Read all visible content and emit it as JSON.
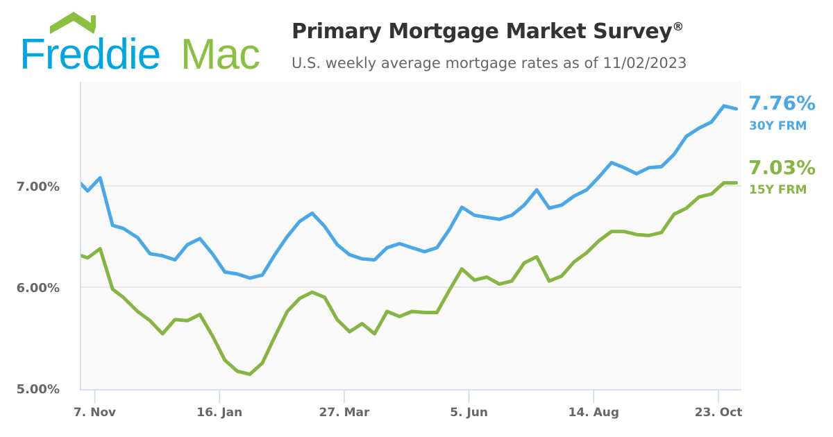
{
  "logo": {
    "text_blue": "Freddie",
    "text_green": "Mac",
    "blue": "#00A6E2",
    "green": "#8BBF3F"
  },
  "header": {
    "title": "Primary Mortgage Market Survey",
    "title_mark": "®",
    "subtitle": "U.S. weekly average mortgage rates as of 11/02/2023"
  },
  "chart_data": {
    "type": "line",
    "title": "Primary Mortgage Market Survey®",
    "subtitle": "U.S. weekly average mortgage rates as of 11/02/2023",
    "xlim": [
      "2022-10-30",
      "2023-11-06"
    ],
    "ylim": [
      5.0,
      8.0
    ],
    "grid": true,
    "y_ticks": [
      {
        "value": 5,
        "label": "5.00%"
      },
      {
        "value": 6,
        "label": "6.00%"
      },
      {
        "value": 7,
        "label": "7.00%"
      }
    ],
    "x_ticks": [
      {
        "date": "2022-11-07",
        "label": "7. Nov"
      },
      {
        "date": "2023-01-16",
        "label": "16. Jan"
      },
      {
        "date": "2023-03-27",
        "label": "27. Mar"
      },
      {
        "date": "2023-06-05",
        "label": "5. Jun"
      },
      {
        "date": "2023-08-14",
        "label": "14. Aug"
      },
      {
        "date": "2023-10-23",
        "label": "23. Oct"
      }
    ],
    "x": [
      "2022-10-27",
      "2022-11-03",
      "2022-11-10",
      "2022-11-17",
      "2022-11-23",
      "2022-12-01",
      "2022-12-08",
      "2022-12-15",
      "2022-12-22",
      "2022-12-29",
      "2023-01-05",
      "2023-01-12",
      "2023-01-19",
      "2023-01-26",
      "2023-02-02",
      "2023-02-09",
      "2023-02-16",
      "2023-02-23",
      "2023-03-02",
      "2023-03-09",
      "2023-03-16",
      "2023-03-23",
      "2023-03-30",
      "2023-04-06",
      "2023-04-13",
      "2023-04-20",
      "2023-04-27",
      "2023-05-04",
      "2023-05-11",
      "2023-05-18",
      "2023-05-25",
      "2023-06-01",
      "2023-06-08",
      "2023-06-15",
      "2023-06-22",
      "2023-06-29",
      "2023-07-06",
      "2023-07-13",
      "2023-07-20",
      "2023-07-27",
      "2023-08-03",
      "2023-08-10",
      "2023-08-17",
      "2023-08-24",
      "2023-08-31",
      "2023-09-07",
      "2023-09-14",
      "2023-09-21",
      "2023-09-28",
      "2023-10-05",
      "2023-10-12",
      "2023-10-19",
      "2023-10-26",
      "2023-11-02"
    ],
    "series": [
      {
        "name": "30Y FRM",
        "color": "#4BA8E8",
        "end_label": "7.76%",
        "values": [
          7.08,
          6.95,
          7.08,
          6.61,
          6.58,
          6.49,
          6.33,
          6.31,
          6.27,
          6.42,
          6.48,
          6.33,
          6.15,
          6.13,
          6.09,
          6.12,
          6.32,
          6.5,
          6.65,
          6.73,
          6.6,
          6.42,
          6.32,
          6.28,
          6.27,
          6.39,
          6.43,
          6.39,
          6.35,
          6.39,
          6.57,
          6.79,
          6.71,
          6.69,
          6.67,
          6.71,
          6.81,
          6.96,
          6.78,
          6.81,
          6.9,
          6.96,
          7.09,
          7.23,
          7.18,
          7.12,
          7.18,
          7.19,
          7.31,
          7.49,
          7.57,
          7.63,
          7.79,
          7.76
        ]
      },
      {
        "name": "15Y FRM",
        "color": "#86B543",
        "end_label": "7.03%",
        "values": [
          6.33,
          6.29,
          6.38,
          5.98,
          5.9,
          5.76,
          5.67,
          5.54,
          5.68,
          5.67,
          5.73,
          5.52,
          5.28,
          5.17,
          5.14,
          5.25,
          5.51,
          5.76,
          5.89,
          5.95,
          5.9,
          5.68,
          5.56,
          5.64,
          5.54,
          5.76,
          5.71,
          5.76,
          5.75,
          5.75,
          5.97,
          6.18,
          6.07,
          6.1,
          6.03,
          6.06,
          6.24,
          6.3,
          6.06,
          6.11,
          6.25,
          6.34,
          6.46,
          6.55,
          6.55,
          6.52,
          6.51,
          6.54,
          6.72,
          6.78,
          6.89,
          6.92,
          7.03,
          7.03
        ]
      }
    ]
  }
}
